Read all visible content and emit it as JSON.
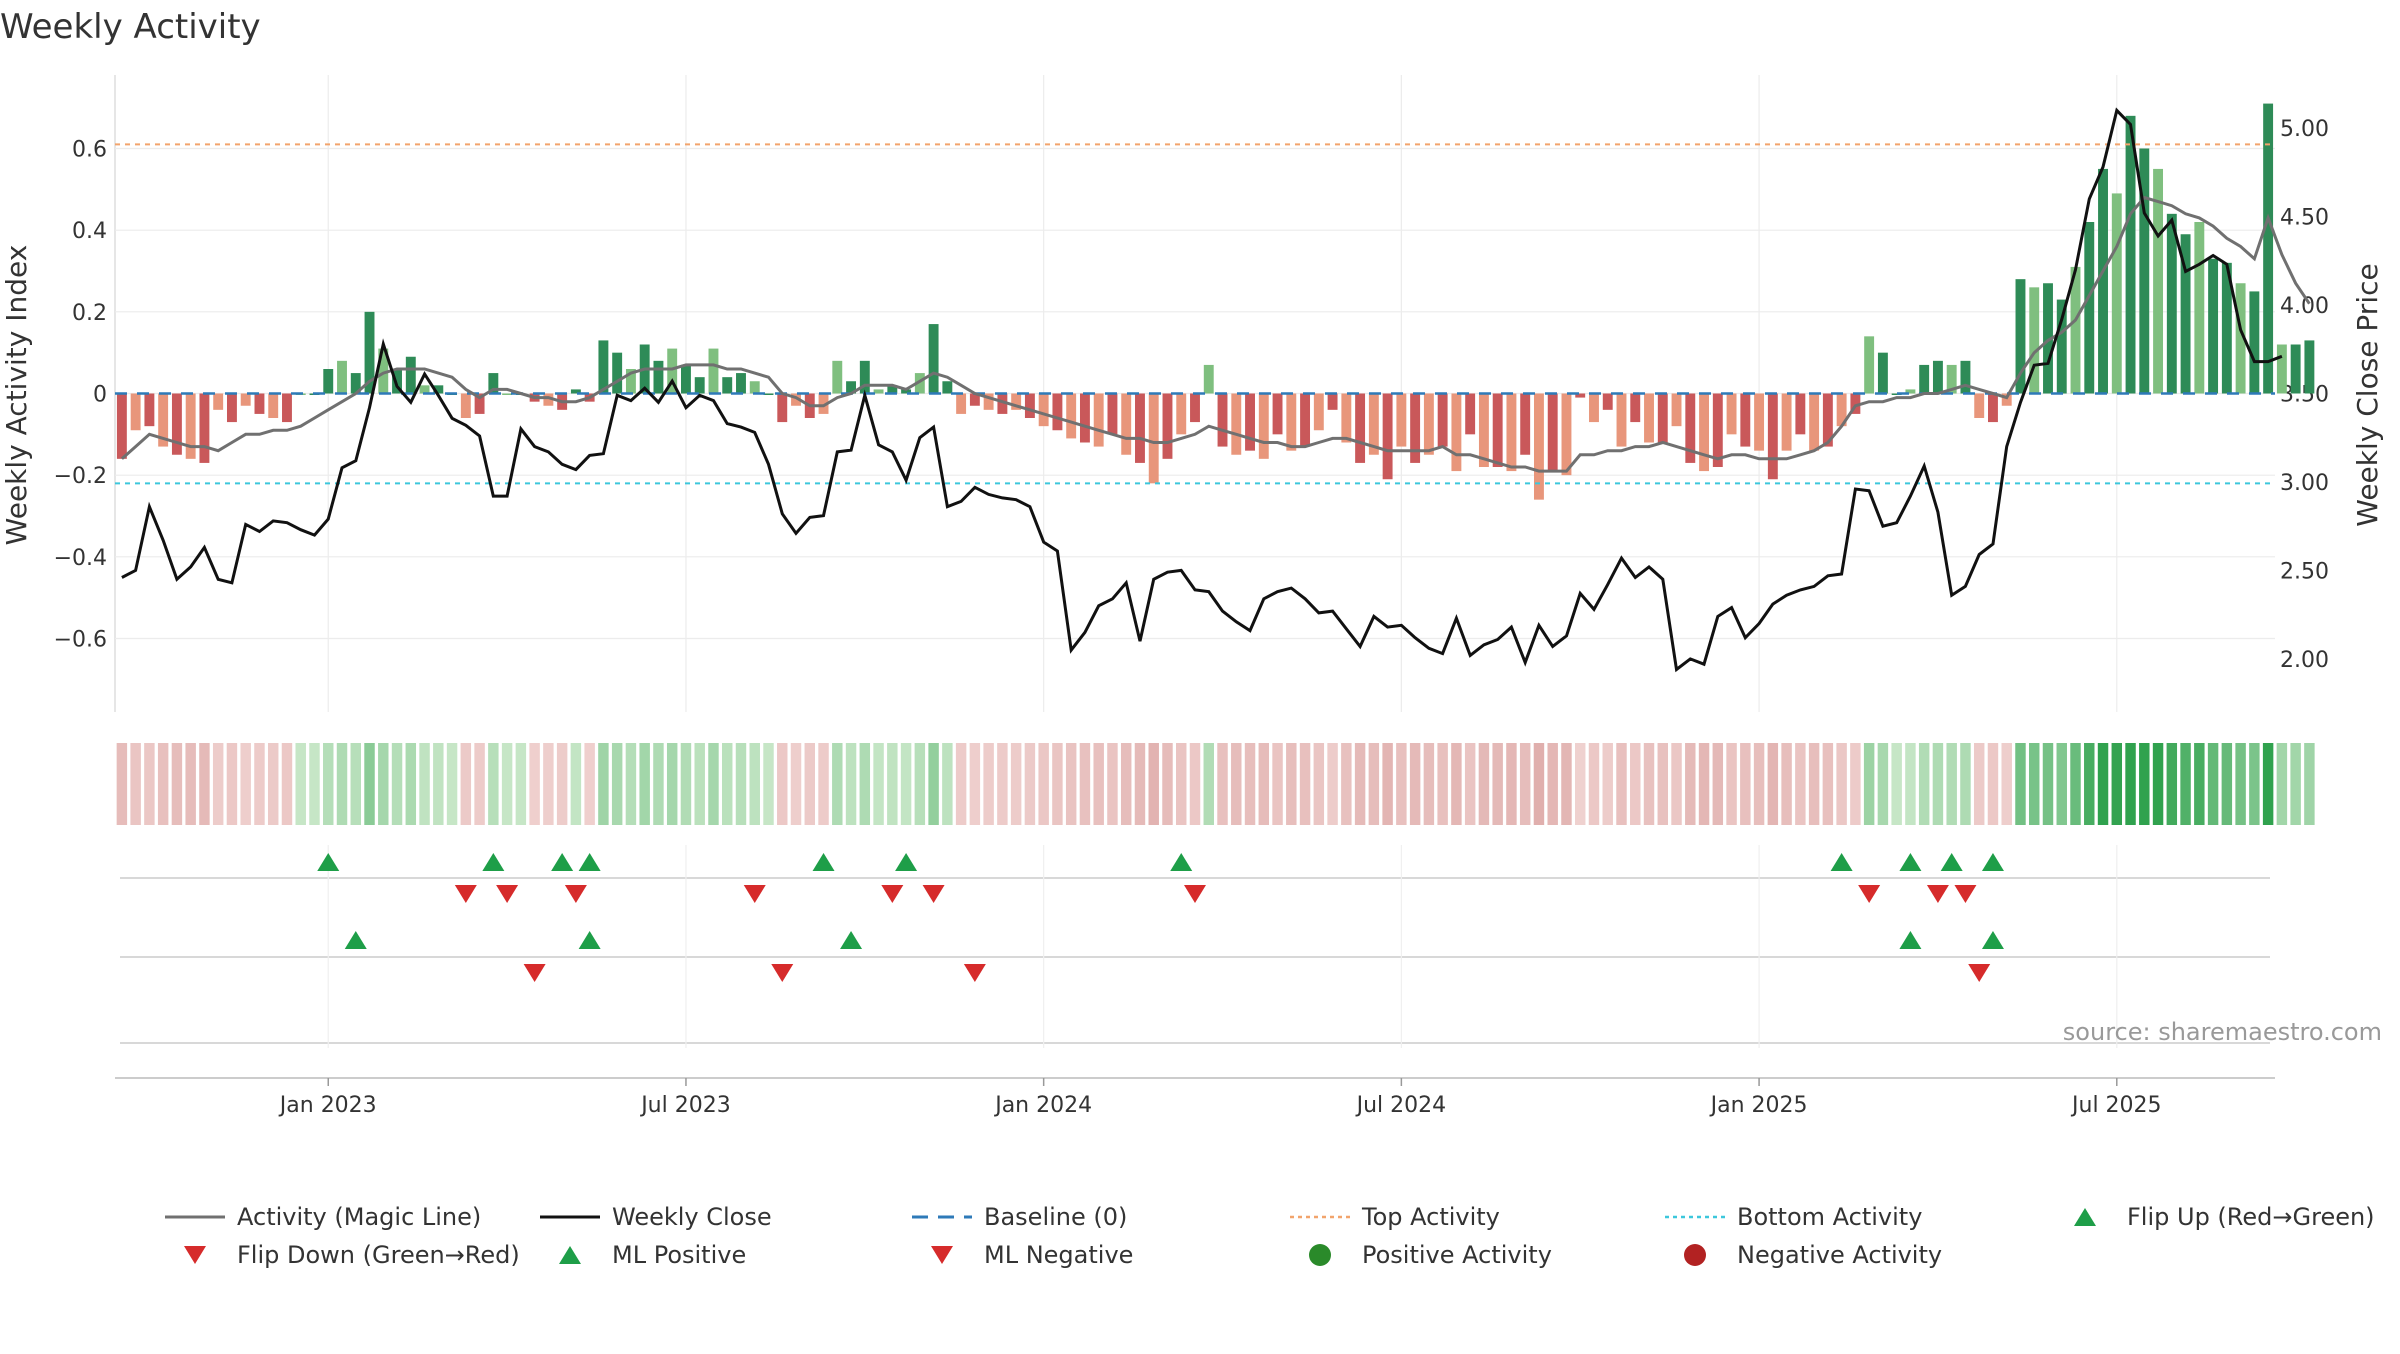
{
  "chart_data": {
    "type": "bar",
    "title": "Weekly Activity",
    "source": "source: sharemaestro.com",
    "ylabel_left": "Weekly Activity Index",
    "ylabel_right": "Weekly Close Price",
    "ylim_left": [
      -0.78,
      0.78
    ],
    "ylim_right": [
      1.7,
      5.3
    ],
    "yticks_left": [
      0.6,
      0.4,
      0.2,
      0,
      -0.2,
      -0.4,
      -0.6
    ],
    "ytick_labels_left": [
      "0.6",
      "0.4",
      "0.2",
      "0",
      "−0.2",
      "−0.4",
      "−0.6"
    ],
    "yticks_right": [
      5.0,
      4.5,
      4.0,
      3.5,
      3.0,
      2.5,
      2.0
    ],
    "ytick_labels_right": [
      "5.00",
      "4.50",
      "4.00",
      "3.50",
      "3.00",
      "2.50",
      "2.00"
    ],
    "x_ticks": [
      {
        "week": 15,
        "label": "Jan 2023"
      },
      {
        "week": 41,
        "label": "Jul 2023"
      },
      {
        "week": 67,
        "label": "Jan 2024"
      },
      {
        "week": 93,
        "label": "Jul 2024"
      },
      {
        "week": 119,
        "label": "Jan 2025"
      },
      {
        "week": 145,
        "label": "Jul 2025"
      }
    ],
    "n_weeks": 157,
    "top_activity": 0.61,
    "bottom_activity": -0.22,
    "baseline": 0,
    "series": [
      {
        "name": "Weekly Activity Index",
        "kind": "bar",
        "values": [
          -0.16,
          -0.09,
          -0.08,
          -0.13,
          -0.15,
          -0.16,
          -0.17,
          -0.04,
          -0.07,
          -0.03,
          -0.05,
          -0.06,
          -0.07,
          0.0,
          0.0,
          0.06,
          0.08,
          0.05,
          0.2,
          0.11,
          0.06,
          0.09,
          0.02,
          0.02,
          0.0,
          -0.06,
          -0.05,
          0.05,
          0.0,
          0.0,
          -0.02,
          -0.03,
          -0.04,
          0.01,
          -0.02,
          0.13,
          0.1,
          0.06,
          0.12,
          0.08,
          0.11,
          0.07,
          0.04,
          0.11,
          0.04,
          0.05,
          0.03,
          0.0,
          -0.07,
          -0.03,
          -0.06,
          -0.05,
          0.08,
          0.03,
          0.08,
          0.01,
          0.02,
          0.01,
          0.05,
          0.17,
          0.03,
          -0.05,
          -0.03,
          -0.04,
          -0.05,
          -0.04,
          -0.06,
          -0.08,
          -0.09,
          -0.11,
          -0.12,
          -0.13,
          -0.1,
          -0.15,
          -0.17,
          -0.22,
          -0.16,
          -0.1,
          -0.07,
          0.07,
          -0.13,
          -0.15,
          -0.14,
          -0.16,
          -0.1,
          -0.14,
          -0.13,
          -0.09,
          -0.04,
          -0.12,
          -0.17,
          -0.15,
          -0.21,
          -0.13,
          -0.17,
          -0.15,
          -0.13,
          -0.19,
          -0.1,
          -0.18,
          -0.18,
          -0.19,
          -0.15,
          -0.26,
          -0.19,
          -0.2,
          -0.01,
          -0.07,
          -0.04,
          -0.13,
          -0.07,
          -0.12,
          -0.12,
          -0.08,
          -0.17,
          -0.19,
          -0.18,
          -0.1,
          -0.13,
          -0.14,
          -0.21,
          -0.14,
          -0.1,
          -0.14,
          -0.13,
          -0.08,
          -0.05,
          0.14,
          0.1,
          0.0,
          0.01,
          0.07,
          0.08,
          0.07,
          0.08,
          -0.06,
          -0.07,
          -0.03,
          0.28,
          0.26,
          0.27,
          0.23,
          0.31,
          0.42,
          0.55,
          0.49,
          0.68,
          0.6,
          0.55,
          0.44,
          0.39,
          0.42,
          0.33,
          0.32,
          0.27,
          0.25,
          0.71,
          0.12,
          0.12,
          0.13
        ]
      },
      {
        "name": "Activity (Magic Line)",
        "kind": "line",
        "values": [
          -0.16,
          -0.13,
          -0.1,
          -0.11,
          -0.12,
          -0.13,
          -0.13,
          -0.14,
          -0.12,
          -0.1,
          -0.1,
          -0.09,
          -0.09,
          -0.08,
          -0.06,
          -0.04,
          -0.02,
          0.0,
          0.03,
          0.05,
          0.06,
          0.06,
          0.06,
          0.05,
          0.04,
          0.01,
          -0.01,
          0.01,
          0.01,
          0.0,
          -0.01,
          -0.01,
          -0.02,
          -0.02,
          -0.01,
          0.01,
          0.03,
          0.05,
          0.06,
          0.06,
          0.06,
          0.07,
          0.07,
          0.07,
          0.06,
          0.06,
          0.05,
          0.04,
          0.0,
          -0.01,
          -0.03,
          -0.03,
          -0.01,
          0.0,
          0.02,
          0.02,
          0.02,
          0.01,
          0.03,
          0.05,
          0.04,
          0.02,
          0.0,
          -0.01,
          -0.02,
          -0.03,
          -0.04,
          -0.05,
          -0.06,
          -0.07,
          -0.08,
          -0.09,
          -0.1,
          -0.11,
          -0.11,
          -0.12,
          -0.12,
          -0.11,
          -0.1,
          -0.08,
          -0.09,
          -0.1,
          -0.11,
          -0.12,
          -0.12,
          -0.13,
          -0.13,
          -0.12,
          -0.11,
          -0.11,
          -0.12,
          -0.13,
          -0.14,
          -0.14,
          -0.14,
          -0.14,
          -0.13,
          -0.15,
          -0.15,
          -0.16,
          -0.17,
          -0.18,
          -0.18,
          -0.19,
          -0.19,
          -0.19,
          -0.15,
          -0.15,
          -0.14,
          -0.14,
          -0.13,
          -0.13,
          -0.12,
          -0.13,
          -0.14,
          -0.15,
          -0.16,
          -0.15,
          -0.15,
          -0.16,
          -0.16,
          -0.16,
          -0.15,
          -0.14,
          -0.12,
          -0.08,
          -0.03,
          -0.02,
          -0.02,
          -0.01,
          -0.01,
          0.0,
          0.0,
          0.01,
          0.02,
          0.01,
          0.0,
          -0.01,
          0.05,
          0.1,
          0.13,
          0.15,
          0.18,
          0.24,
          0.3,
          0.36,
          0.44,
          0.48,
          0.47,
          0.46,
          0.44,
          0.43,
          0.41,
          0.38,
          0.36,
          0.33,
          0.43,
          0.34,
          0.27,
          0.22
        ]
      },
      {
        "name": "Weekly Close",
        "kind": "line",
        "axis": "right",
        "values": [
          2.46,
          2.5,
          2.86,
          2.67,
          2.45,
          2.52,
          2.63,
          2.45,
          2.43,
          2.76,
          2.72,
          2.78,
          2.77,
          2.73,
          2.7,
          2.79,
          3.08,
          3.12,
          3.42,
          3.78,
          3.54,
          3.45,
          3.61,
          3.49,
          3.36,
          3.32,
          3.26,
          2.92,
          2.92,
          3.3,
          3.2,
          3.17,
          3.1,
          3.07,
          3.15,
          3.16,
          3.49,
          3.46,
          3.53,
          3.45,
          3.57,
          3.42,
          3.49,
          3.46,
          3.33,
          3.31,
          3.28,
          3.1,
          2.82,
          2.71,
          2.8,
          2.81,
          3.17,
          3.18,
          3.49,
          3.21,
          3.17,
          3.01,
          3.25,
          3.31,
          2.86,
          2.89,
          2.97,
          2.93,
          2.91,
          2.9,
          2.86,
          2.66,
          2.61,
          2.05,
          2.15,
          2.3,
          2.34,
          2.43,
          2.1,
          2.45,
          2.49,
          2.5,
          2.39,
          2.38,
          2.27,
          2.21,
          2.16,
          2.34,
          2.38,
          2.4,
          2.34,
          2.26,
          2.27,
          2.17,
          2.07,
          2.24,
          2.18,
          2.19,
          2.12,
          2.06,
          2.03,
          2.23,
          2.02,
          2.08,
          2.11,
          2.18,
          1.98,
          2.19,
          2.07,
          2.13,
          2.37,
          2.28,
          2.42,
          2.57,
          2.46,
          2.52,
          2.45,
          1.94,
          2.0,
          1.97,
          2.24,
          2.29,
          2.12,
          2.2,
          2.31,
          2.36,
          2.39,
          2.41,
          2.47,
          2.48,
          2.96,
          2.95,
          2.75,
          2.77,
          2.92,
          3.09,
          2.83,
          2.36,
          2.41,
          2.59,
          2.65,
          3.2,
          3.45,
          3.66,
          3.67,
          3.92,
          4.2,
          4.6,
          4.78,
          5.1,
          5.02,
          4.52,
          4.39,
          4.48,
          4.19,
          4.23,
          4.28,
          4.23,
          3.86,
          3.68,
          3.68,
          3.71
        ]
      }
    ],
    "strip": {
      "name": "Weekly activity heat strip"
    },
    "flip_up_weeks": [
      15,
      27,
      32,
      34,
      51,
      57,
      77,
      125,
      130,
      133,
      136
    ],
    "flip_down_weeks": [
      25,
      28,
      33,
      46,
      56,
      59,
      78,
      127,
      132,
      134
    ],
    "ml_positive_weeks": [
      17,
      34,
      53,
      130,
      136
    ],
    "ml_negative_weeks": [
      30,
      48,
      62,
      135
    ],
    "legend": [
      {
        "label": "Activity (Magic Line)",
        "symbol": "line",
        "color": "#707070"
      },
      {
        "label": "Weekly Close",
        "symbol": "line",
        "color": "#111111"
      },
      {
        "label": "Baseline (0)",
        "symbol": "dash",
        "color": "#2e7ab8"
      },
      {
        "label": "Top Activity",
        "symbol": "dot-line",
        "color": "#f2a46c"
      },
      {
        "label": "Bottom Activity",
        "symbol": "dot-line",
        "color": "#3cc7dc"
      },
      {
        "label": "Flip Up (Red→Green)",
        "symbol": "triangle-up",
        "color": "#1e9e48"
      },
      {
        "label": "Flip Down (Green→Red)",
        "symbol": "triangle-down",
        "color": "#d62b2b"
      },
      {
        "label": "ML Positive",
        "symbol": "triangle-up",
        "color": "#1e9e48"
      },
      {
        "label": "ML Negative",
        "symbol": "triangle-down",
        "color": "#d62b2b"
      },
      {
        "label": "Positive Activity",
        "symbol": "circle",
        "color": "#2a8a2a"
      },
      {
        "label": "Negative Activity",
        "symbol": "circle",
        "color": "#b22222"
      }
    ],
    "colors": {
      "pos_strong": "#2e8b57",
      "pos_light": "#7fbf7f",
      "neg_strong": "#c9585a",
      "neg_light": "#e8967b",
      "magic_line": "#707070",
      "close_line": "#111111",
      "baseline": "#2e7ab8",
      "top": "#f2a46c",
      "bottom": "#3cc7dc",
      "up_marker": "#1e9e48",
      "down_marker": "#d62b2b",
      "grid": "#ececec"
    }
  }
}
